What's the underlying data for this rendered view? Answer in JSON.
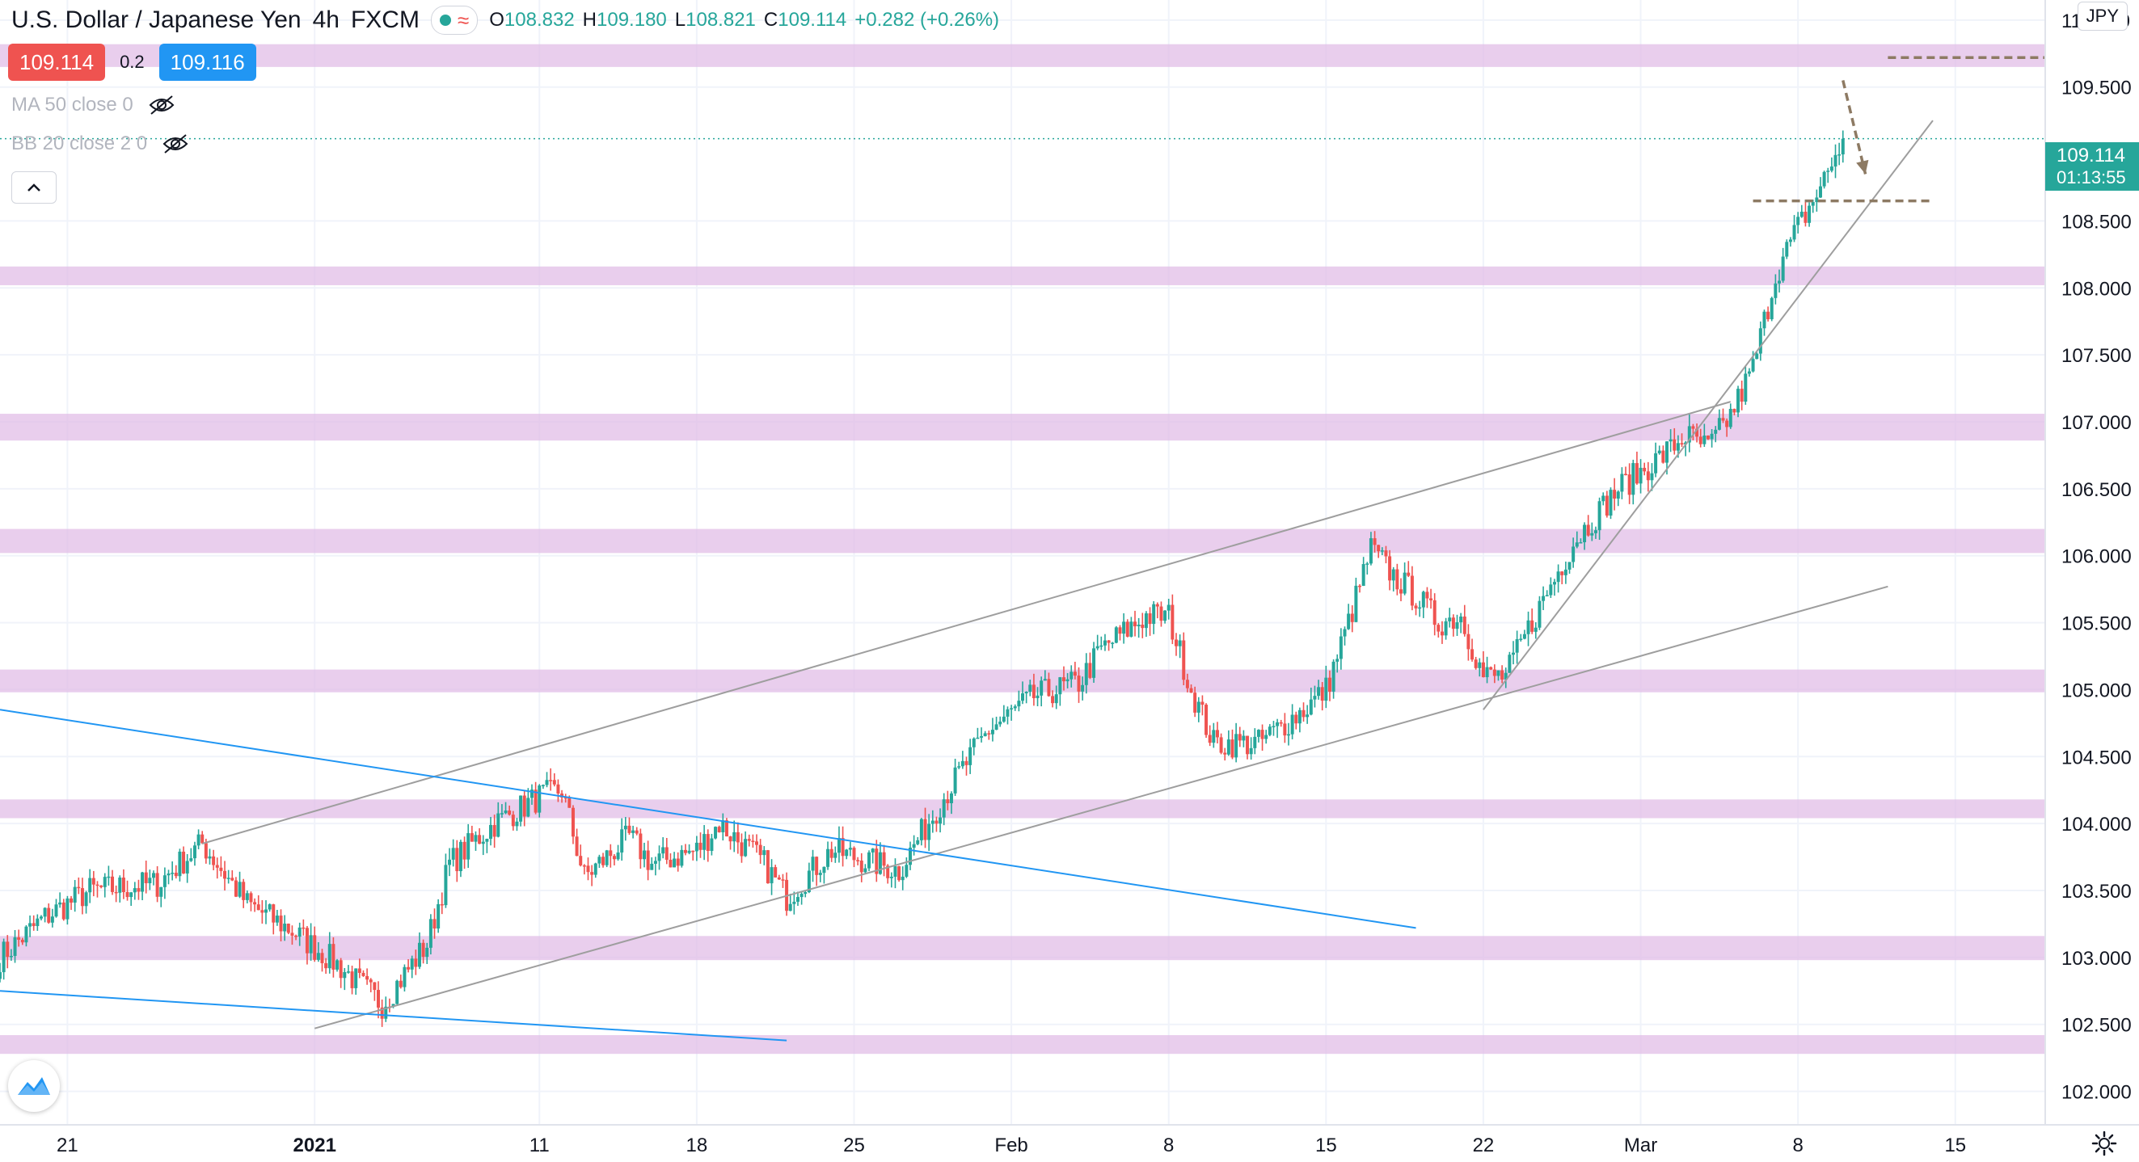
{
  "header": {
    "symbol_title": "U.S. Dollar / Japanese Yen",
    "interval": "4h",
    "exchange": "FXCM",
    "ohlc": [
      {
        "label": "O",
        "value": "108.832"
      },
      {
        "label": "H",
        "value": "109.180"
      },
      {
        "label": "L",
        "value": "108.821"
      },
      {
        "label": "C",
        "value": "109.114"
      }
    ],
    "change": "+0.282 (+0.26%)",
    "currency_button": "JPY"
  },
  "quote": {
    "bid": "109.114",
    "spread": "0.2",
    "ask": "109.116"
  },
  "indicators": [
    {
      "label": "MA 50 close 0"
    },
    {
      "label": "BB 20 close 2 0"
    }
  ],
  "last_price": {
    "price": "109.114",
    "countdown": "01:13:55"
  },
  "colors": {
    "up": "#26a69a",
    "down": "#ef5350",
    "zone": "#e1bee7",
    "channel_line": "#9e9e9e",
    "blue_line": "#2196f3",
    "target_dash": "#8d7a63"
  },
  "icons": [
    "eye-off-icon",
    "chevron-up-icon",
    "tradingview-logo-icon",
    "gear-icon",
    "wave-icon"
  ],
  "chart_data": {
    "type": "candlestick",
    "title": "U.S. Dollar / Japanese Yen, 4h, FXCM",
    "xlabel": "",
    "ylabel": "",
    "ylim": [
      101.75,
      110.15
    ],
    "x_range": [
      "2020-12-18",
      "2021-03-19"
    ],
    "y_ticks": [
      "110.000",
      "109.500",
      "108.500",
      "108.000",
      "107.500",
      "107.000",
      "106.500",
      "106.000",
      "105.500",
      "105.000",
      "104.500",
      "104.000",
      "103.500",
      "103.000",
      "102.500",
      "102.000"
    ],
    "x_ticks": [
      {
        "label": "21",
        "date": "2020-12-21"
      },
      {
        "label": "2021",
        "date": "2021-01-01"
      },
      {
        "label": "11",
        "date": "2021-01-11"
      },
      {
        "label": "18",
        "date": "2021-01-18"
      },
      {
        "label": "25",
        "date": "2021-01-25"
      },
      {
        "label": "Feb",
        "date": "2021-02-01"
      },
      {
        "label": "8",
        "date": "2021-02-08"
      },
      {
        "label": "15",
        "date": "2021-02-15"
      },
      {
        "label": "22",
        "date": "2021-02-22"
      },
      {
        "label": "Mar",
        "date": "2021-03-01"
      },
      {
        "label": "8",
        "date": "2021-03-08"
      },
      {
        "label": "15",
        "date": "2021-03-15"
      }
    ],
    "grid": true,
    "zones": [
      {
        "from": 109.65,
        "to": 109.82
      },
      {
        "from": 108.02,
        "to": 108.16
      },
      {
        "from": 106.86,
        "to": 107.06
      },
      {
        "from": 106.02,
        "to": 106.2
      },
      {
        "from": 104.98,
        "to": 105.15
      },
      {
        "from": 104.04,
        "to": 104.18
      },
      {
        "from": 102.98,
        "to": 103.16
      },
      {
        "from": 102.28,
        "to": 102.42
      }
    ],
    "trend_lines": [
      {
        "style": "gray",
        "from": [
          "2020-12-27",
          103.85
        ],
        "to": [
          "2021-03-05",
          107.15
        ]
      },
      {
        "style": "gray",
        "from": [
          "2021-01-01",
          102.47
        ],
        "to": [
          "2021-03-12",
          105.77
        ]
      },
      {
        "style": "gray",
        "from": [
          "2021-02-22",
          104.85
        ],
        "to": [
          "2021-03-14",
          109.25
        ]
      },
      {
        "style": "blue",
        "from": [
          "2020-12-18",
          104.85
        ],
        "to": [
          "2021-02-19",
          103.22
        ]
      },
      {
        "style": "blue",
        "from": [
          "2020-12-18",
          102.75
        ],
        "to": [
          "2021-01-22",
          102.38
        ]
      }
    ],
    "horizontal_dashes": [
      {
        "value": 109.72,
        "from": "2021-03-12",
        "to": "2021-03-19"
      },
      {
        "value": 108.65,
        "from": "2021-03-06",
        "to": "2021-03-14"
      }
    ],
    "arrow": {
      "from": [
        "2021-03-10",
        109.55
      ],
      "to": [
        "2021-03-11",
        108.85
      ]
    },
    "anchors": [
      [
        "2020-12-18",
        103.0
      ],
      [
        "2020-12-20",
        103.3
      ],
      [
        "2020-12-22",
        103.5
      ],
      [
        "2020-12-25",
        103.55
      ],
      [
        "2020-12-27",
        103.85
      ],
      [
        "2020-12-29",
        103.4
      ],
      [
        "2020-12-31",
        103.2
      ],
      [
        "2021-01-02",
        102.95
      ],
      [
        "2021-01-04",
        102.65
      ],
      [
        "2021-01-06",
        103.1
      ],
      [
        "2021-01-07",
        103.7
      ],
      [
        "2021-01-09",
        104.0
      ],
      [
        "2021-01-11",
        104.2
      ],
      [
        "2021-01-12",
        104.25
      ],
      [
        "2021-01-13",
        103.6
      ],
      [
        "2021-01-15",
        103.9
      ],
      [
        "2021-01-16",
        103.7
      ],
      [
        "2021-01-18",
        103.8
      ],
      [
        "2021-01-19",
        104.0
      ],
      [
        "2021-01-21",
        103.7
      ],
      [
        "2021-01-22",
        103.45
      ],
      [
        "2021-01-24",
        103.8
      ],
      [
        "2021-01-26",
        103.7
      ],
      [
        "2021-01-27",
        103.65
      ],
      [
        "2021-01-29",
        104.2
      ],
      [
        "2021-01-31",
        104.7
      ],
      [
        "2021-02-02",
        104.95
      ],
      [
        "2021-02-04",
        105.05
      ],
      [
        "2021-02-05",
        105.3
      ],
      [
        "2021-02-07",
        105.55
      ],
      [
        "2021-02-08",
        105.55
      ],
      [
        "2021-02-09",
        105.0
      ],
      [
        "2021-02-10",
        104.6
      ],
      [
        "2021-02-12",
        104.6
      ],
      [
        "2021-02-14",
        104.85
      ],
      [
        "2021-02-15",
        105.0
      ],
      [
        "2021-02-16",
        105.5
      ],
      [
        "2021-02-17",
        106.05
      ],
      [
        "2021-02-18",
        105.85
      ],
      [
        "2021-02-19",
        105.7
      ],
      [
        "2021-02-20",
        105.5
      ],
      [
        "2021-02-21",
        105.55
      ],
      [
        "2021-02-22",
        105.1
      ],
      [
        "2021-02-23",
        105.1
      ],
      [
        "2021-02-24",
        105.45
      ],
      [
        "2021-02-26",
        106.1
      ],
      [
        "2021-02-28",
        106.5
      ],
      [
        "2021-03-02",
        106.75
      ],
      [
        "2021-03-03",
        106.9
      ],
      [
        "2021-03-04",
        106.8
      ],
      [
        "2021-03-05",
        107.05
      ],
      [
        "2021-03-06",
        107.4
      ],
      [
        "2021-03-07",
        108.1
      ],
      [
        "2021-03-08",
        108.45
      ],
      [
        "2021-03-09",
        108.75
      ],
      [
        "2021-03-10",
        109.114
      ]
    ]
  }
}
